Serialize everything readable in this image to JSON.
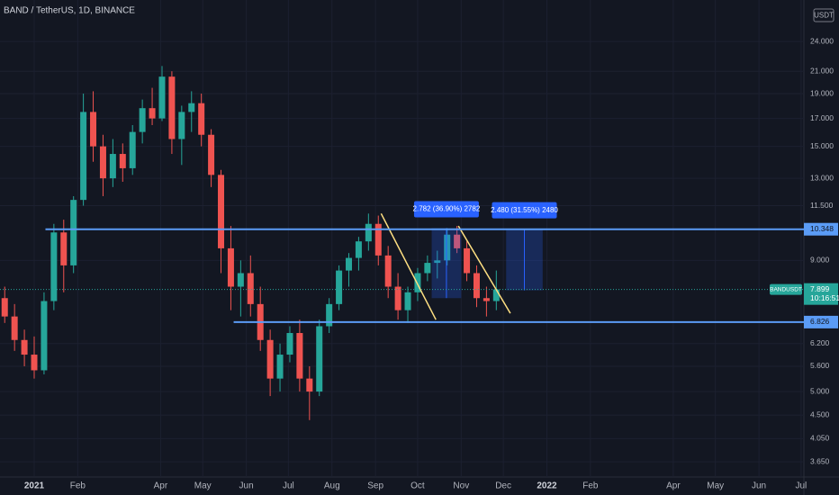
{
  "header": {
    "symbol": "BAND / TetherUS, 1D, BINANCE",
    "currency": "USDT"
  },
  "chart_data": {
    "type": "candlestick",
    "log_scale": true,
    "grid": true,
    "up_color": "#26a69a",
    "down_color": "#ef5350",
    "x": [
      -21,
      -14,
      -7,
      0,
      7,
      14,
      21,
      28,
      35,
      42,
      49,
      56,
      63,
      70,
      77,
      84,
      91,
      98,
      105,
      112,
      119,
      126,
      133,
      140,
      147,
      154,
      161,
      168,
      175,
      182,
      189,
      196,
      203,
      210,
      217,
      224,
      231,
      238,
      245,
      252,
      259,
      266,
      273,
      280,
      287,
      294,
      301,
      308,
      315,
      322,
      329
    ],
    "open": [
      7.6,
      7.0,
      6.3,
      5.9,
      5.5,
      7.5,
      10.2,
      8.8,
      11.8,
      17.5,
      15.0,
      13.0,
      14.5,
      13.6,
      16.0,
      17.8,
      17.0,
      20.5,
      15.5,
      17.5,
      18.2,
      15.8,
      13.2,
      9.5,
      8.0,
      8.5,
      7.4,
      6.3,
      5.3,
      5.9,
      6.5,
      5.3,
      5.0,
      6.7,
      7.4,
      8.6,
      9.1,
      9.8,
      10.6,
      9.2,
      8.0,
      7.2,
      7.8,
      8.5,
      8.9,
      9.0,
      10.1,
      9.5,
      8.5,
      7.6,
      7.5
    ],
    "high": [
      8.0,
      7.4,
      6.6,
      6.4,
      7.8,
      10.6,
      10.8,
      12.0,
      19.0,
      19.2,
      15.8,
      15.5,
      15.2,
      16.5,
      18.5,
      19.5,
      21.5,
      21.0,
      18.0,
      19.2,
      19.0,
      16.2,
      13.5,
      10.5,
      9.0,
      9.2,
      8.0,
      6.6,
      6.2,
      6.7,
      6.9,
      5.6,
      6.9,
      7.6,
      8.8,
      9.3,
      10.0,
      11.1,
      11.0,
      9.6,
      8.5,
      8.0,
      8.7,
      9.2,
      9.4,
      10.4,
      10.5,
      9.8,
      8.8,
      8.0,
      8.6
    ],
    "low": [
      6.8,
      6.0,
      5.6,
      5.3,
      5.4,
      7.2,
      7.8,
      8.5,
      11.5,
      14.0,
      12.0,
      12.5,
      12.8,
      13.2,
      15.2,
      16.5,
      16.8,
      14.5,
      13.8,
      16.0,
      15.0,
      12.5,
      8.5,
      7.2,
      7.0,
      7.0,
      6.0,
      4.9,
      5.0,
      5.7,
      5.0,
      4.4,
      4.9,
      6.5,
      7.2,
      8.0,
      8.6,
      9.4,
      8.8,
      7.6,
      6.9,
      6.8,
      7.5,
      8.2,
      8.3,
      8.8,
      9.3,
      8.2,
      7.3,
      7.0,
      7.2
    ],
    "close": [
      7.0,
      6.3,
      5.9,
      5.5,
      7.5,
      10.2,
      8.8,
      11.8,
      17.5,
      15.0,
      13.0,
      14.5,
      13.6,
      16.0,
      17.8,
      17.0,
      20.5,
      15.5,
      17.5,
      18.2,
      15.8,
      13.2,
      9.5,
      8.0,
      8.5,
      7.4,
      6.3,
      5.3,
      5.9,
      6.5,
      5.3,
      5.0,
      6.7,
      7.4,
      8.6,
      9.1,
      9.8,
      10.6,
      9.2,
      8.0,
      7.2,
      7.8,
      8.5,
      8.9,
      9.0,
      10.1,
      9.5,
      8.5,
      7.6,
      7.5,
      7.9
    ],
    "xlim": [
      -24.36,
      548
    ],
    "ylim": [
      3.41,
      28.9
    ],
    "xticks": [
      {
        "value": 0,
        "label": "2021"
      },
      {
        "value": 31,
        "label": "Feb"
      },
      {
        "value": 90,
        "label": "Apr"
      },
      {
        "value": 120,
        "label": "May"
      },
      {
        "value": 151,
        "label": "Jun"
      },
      {
        "value": 181,
        "label": "Jul"
      },
      {
        "value": 212,
        "label": "Aug"
      },
      {
        "value": 243,
        "label": "Sep"
      },
      {
        "value": 273,
        "label": "Oct"
      },
      {
        "value": 304,
        "label": "Nov"
      },
      {
        "value": 334,
        "label": "Dec"
      },
      {
        "value": 365,
        "label": "2022"
      },
      {
        "value": 396,
        "label": "Feb"
      },
      {
        "value": 455,
        "label": "Apr"
      },
      {
        "value": 485,
        "label": "May"
      },
      {
        "value": 516,
        "label": "Jun"
      },
      {
        "value": 546,
        "label": "Jul"
      }
    ],
    "yticks": [
      {
        "value": 24,
        "label": "24.000"
      },
      {
        "value": 21,
        "label": "21.000"
      },
      {
        "value": 19,
        "label": "19.000"
      },
      {
        "value": 17,
        "label": "17.000"
      },
      {
        "value": 15,
        "label": "15.000"
      },
      {
        "value": 13,
        "label": "13.000"
      },
      {
        "value": 11.5,
        "label": "11.500"
      },
      {
        "value": 9,
        "label": "9.000"
      },
      {
        "value": 6.2,
        "label": "6.200"
      },
      {
        "value": 5.6,
        "label": "5.600"
      },
      {
        "value": 5,
        "label": "5.000"
      },
      {
        "value": 4.5,
        "label": "4.500"
      },
      {
        "value": 4.05,
        "label": "4.050"
      },
      {
        "value": 3.65,
        "label": "3.650"
      }
    ],
    "levels": [
      {
        "value": 10.348,
        "label": "10.348",
        "from": 8
      },
      {
        "value": 6.826,
        "label": "6.826",
        "from": 142
      }
    ],
    "trendlines": [
      {
        "x": [
          247,
          286
        ],
        "y": [
          11.1,
          6.9
        ]
      },
      {
        "x": [
          302,
          339
        ],
        "y": [
          10.5,
          7.1
        ]
      }
    ],
    "measures": [
      {
        "x": [
          283,
          304
        ],
        "y": [
          7.6,
          10.4
        ],
        "label": "2.782 (36.90%) 2782"
      },
      {
        "x": [
          336,
          362
        ],
        "y": [
          7.87,
          10.35
        ],
        "label": "2.480 (31.55%) 2480"
      }
    ],
    "last": {
      "value": 7.899,
      "label": "7.899",
      "symbol": "BANDUSDT",
      "countdown": "10:16:51"
    }
  }
}
